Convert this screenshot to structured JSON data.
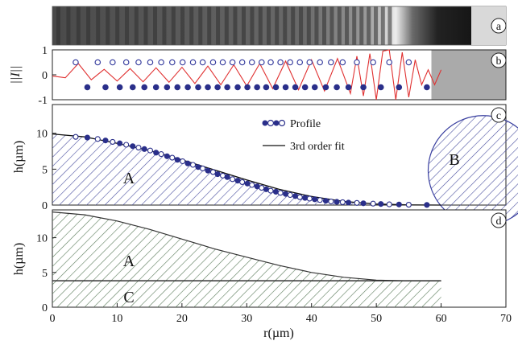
{
  "chart_data": [
    {
      "panel": "a",
      "type": "image",
      "label": "a"
    },
    {
      "panel": "b",
      "type": "line",
      "label": "b",
      "ylabel": "||I||",
      "ylim": [
        -1,
        1
      ],
      "yticks": [
        "1",
        "0",
        "-1"
      ],
      "series": [
        {
          "type": "line",
          "color": "#e03030",
          "x": [
            0,
            2,
            4,
            6,
            8,
            10,
            12,
            14,
            16,
            18,
            20,
            22,
            24,
            26,
            28,
            30,
            32,
            34,
            36,
            38,
            40,
            42,
            44,
            46,
            47,
            48,
            49,
            50,
            51,
            52,
            53,
            54,
            55,
            56,
            57,
            58,
            59,
            60
          ],
          "values": [
            -0.05,
            -0.12,
            0.45,
            -0.2,
            0.22,
            -0.25,
            0.25,
            -0.28,
            0.28,
            -0.3,
            0.3,
            -0.35,
            0.35,
            -0.4,
            0.4,
            -0.45,
            0.45,
            -0.55,
            0.55,
            -0.6,
            0.6,
            -0.65,
            0.65,
            -0.75,
            0.75,
            -0.85,
            0.85,
            -1.0,
            0.95,
            1.0,
            -1.0,
            0.9,
            -0.9,
            0.6,
            -0.4,
            0.2,
            -0.4,
            0.2
          ]
        },
        {
          "type": "scatter",
          "marker": "open",
          "color": "#3a40a0",
          "x": [
            3.6,
            7.0,
            9.3,
            11.4,
            13.3,
            15.1,
            16.8,
            18.5,
            20.1,
            21.7,
            23.2,
            24.8,
            26.3,
            27.8,
            29.3,
            30.8,
            32.3,
            33.7,
            35.2,
            36.7,
            38.2,
            39.7,
            41.3,
            43.0,
            44.8,
            47.0,
            49.5,
            52.0,
            55.0
          ],
          "values": [
            0.5,
            0.5,
            0.5,
            0.5,
            0.5,
            0.5,
            0.5,
            0.5,
            0.5,
            0.5,
            0.5,
            0.5,
            0.5,
            0.5,
            0.5,
            0.5,
            0.5,
            0.5,
            0.5,
            0.5,
            0.5,
            0.5,
            0.5,
            0.5,
            0.5,
            0.5,
            0.5,
            0.5,
            0.5
          ]
        },
        {
          "type": "scatter",
          "marker": "filled",
          "color": "#2a2f8a",
          "x": [
            5.4,
            8.2,
            10.4,
            12.4,
            14.2,
            16.0,
            17.7,
            19.3,
            20.9,
            22.5,
            24.0,
            25.5,
            27.0,
            28.6,
            30.1,
            31.6,
            33.0,
            34.5,
            36.0,
            37.5,
            39.0,
            40.5,
            42.2,
            43.9,
            45.7,
            48.0,
            50.7,
            53.5,
            57.8
          ],
          "values": [
            -0.5,
            -0.5,
            -0.5,
            -0.5,
            -0.5,
            -0.5,
            -0.5,
            -0.5,
            -0.5,
            -0.5,
            -0.5,
            -0.5,
            -0.5,
            -0.5,
            -0.5,
            -0.5,
            -0.5,
            -0.5,
            -0.5,
            -0.5,
            -0.5,
            -0.5,
            -0.5,
            -0.5,
            -0.5,
            -0.5,
            -0.5,
            -0.5,
            -0.5
          ]
        }
      ],
      "shaded_from_x": 58.5,
      "shade_color": "#aaaaaa"
    },
    {
      "panel": "c",
      "type": "scatter",
      "label": "c",
      "ylabel": "h(µm)",
      "ylim": [
        0,
        14
      ],
      "yticks": [
        "0",
        "5",
        "10"
      ],
      "legend": {
        "position": "top-center",
        "entries": [
          "Profile",
          "3rd order fit"
        ]
      },
      "regions": [
        "A",
        "B"
      ],
      "hatch_color": "#4a50a0",
      "series": [
        {
          "name": "Profile",
          "type": "scatter",
          "color": "#2a2f8a",
          "x": [
            3.6,
            5.4,
            7.0,
            8.2,
            9.3,
            10.4,
            11.4,
            12.4,
            13.3,
            14.2,
            15.1,
            16.0,
            16.8,
            17.7,
            18.5,
            19.3,
            20.1,
            20.9,
            21.7,
            22.5,
            23.2,
            24.0,
            24.8,
            25.5,
            26.3,
            27.0,
            27.8,
            28.6,
            29.3,
            30.1,
            30.8,
            31.6,
            32.3,
            33.0,
            33.7,
            34.5,
            35.2,
            36.0,
            36.7,
            37.5,
            38.2,
            39.0,
            39.7,
            40.5,
            41.3,
            42.2,
            43.0,
            43.9,
            44.8,
            45.7,
            47.0,
            48.0,
            49.5,
            50.7,
            52.0,
            53.5,
            55.0,
            57.8
          ],
          "values": [
            9.5,
            9.4,
            9.2,
            9.0,
            8.8,
            8.6,
            8.4,
            8.2,
            8.0,
            7.8,
            7.6,
            7.3,
            7.1,
            6.8,
            6.6,
            6.3,
            6.1,
            5.8,
            5.6,
            5.3,
            5.1,
            4.8,
            4.6,
            4.3,
            4.1,
            3.9,
            3.6,
            3.4,
            3.2,
            3.0,
            2.8,
            2.6,
            2.4,
            2.2,
            2.0,
            1.85,
            1.7,
            1.55,
            1.4,
            1.25,
            1.1,
            1.0,
            0.9,
            0.8,
            0.7,
            0.6,
            0.5,
            0.45,
            0.4,
            0.35,
            0.3,
            0.25,
            0.2,
            0.15,
            0.1,
            0.08,
            0.05,
            0.02
          ]
        },
        {
          "name": "3rd order fit",
          "type": "line",
          "color": "#111111",
          "x": [
            0,
            5,
            10,
            15,
            20,
            25,
            30,
            35,
            40,
            45,
            50,
            55,
            60
          ],
          "values": [
            9.9,
            9.5,
            8.6,
            7.6,
            6.3,
            4.9,
            3.5,
            2.2,
            1.2,
            0.5,
            0.15,
            0.02,
            0.0
          ]
        }
      ],
      "circle_region": {
        "label": "B",
        "center_x": 66.5,
        "center_y": 4.8,
        "radius_x": 8.5
      }
    },
    {
      "panel": "d",
      "type": "area",
      "label": "d",
      "ylabel": "h(µm)",
      "xlabel": "r(µm)",
      "xlim": [
        0,
        70
      ],
      "xticks": [
        "0",
        "10",
        "20",
        "30",
        "40",
        "50",
        "60",
        "70"
      ],
      "ylim": [
        0,
        14
      ],
      "yticks": [
        "0",
        "5",
        "10"
      ],
      "regions": [
        "A",
        "C"
      ],
      "hatch_color": "#5a7a5a",
      "baseline_y": 3.8,
      "series": [
        {
          "name": "",
          "type": "line",
          "color": "#333333",
          "x": [
            0,
            5,
            10,
            15,
            20,
            25,
            30,
            35,
            40,
            45,
            50,
            55,
            60
          ],
          "values": [
            13.7,
            13.3,
            12.4,
            11.2,
            9.8,
            8.4,
            7.2,
            6.0,
            5.0,
            4.3,
            3.9,
            3.8,
            3.8
          ]
        }
      ]
    }
  ]
}
